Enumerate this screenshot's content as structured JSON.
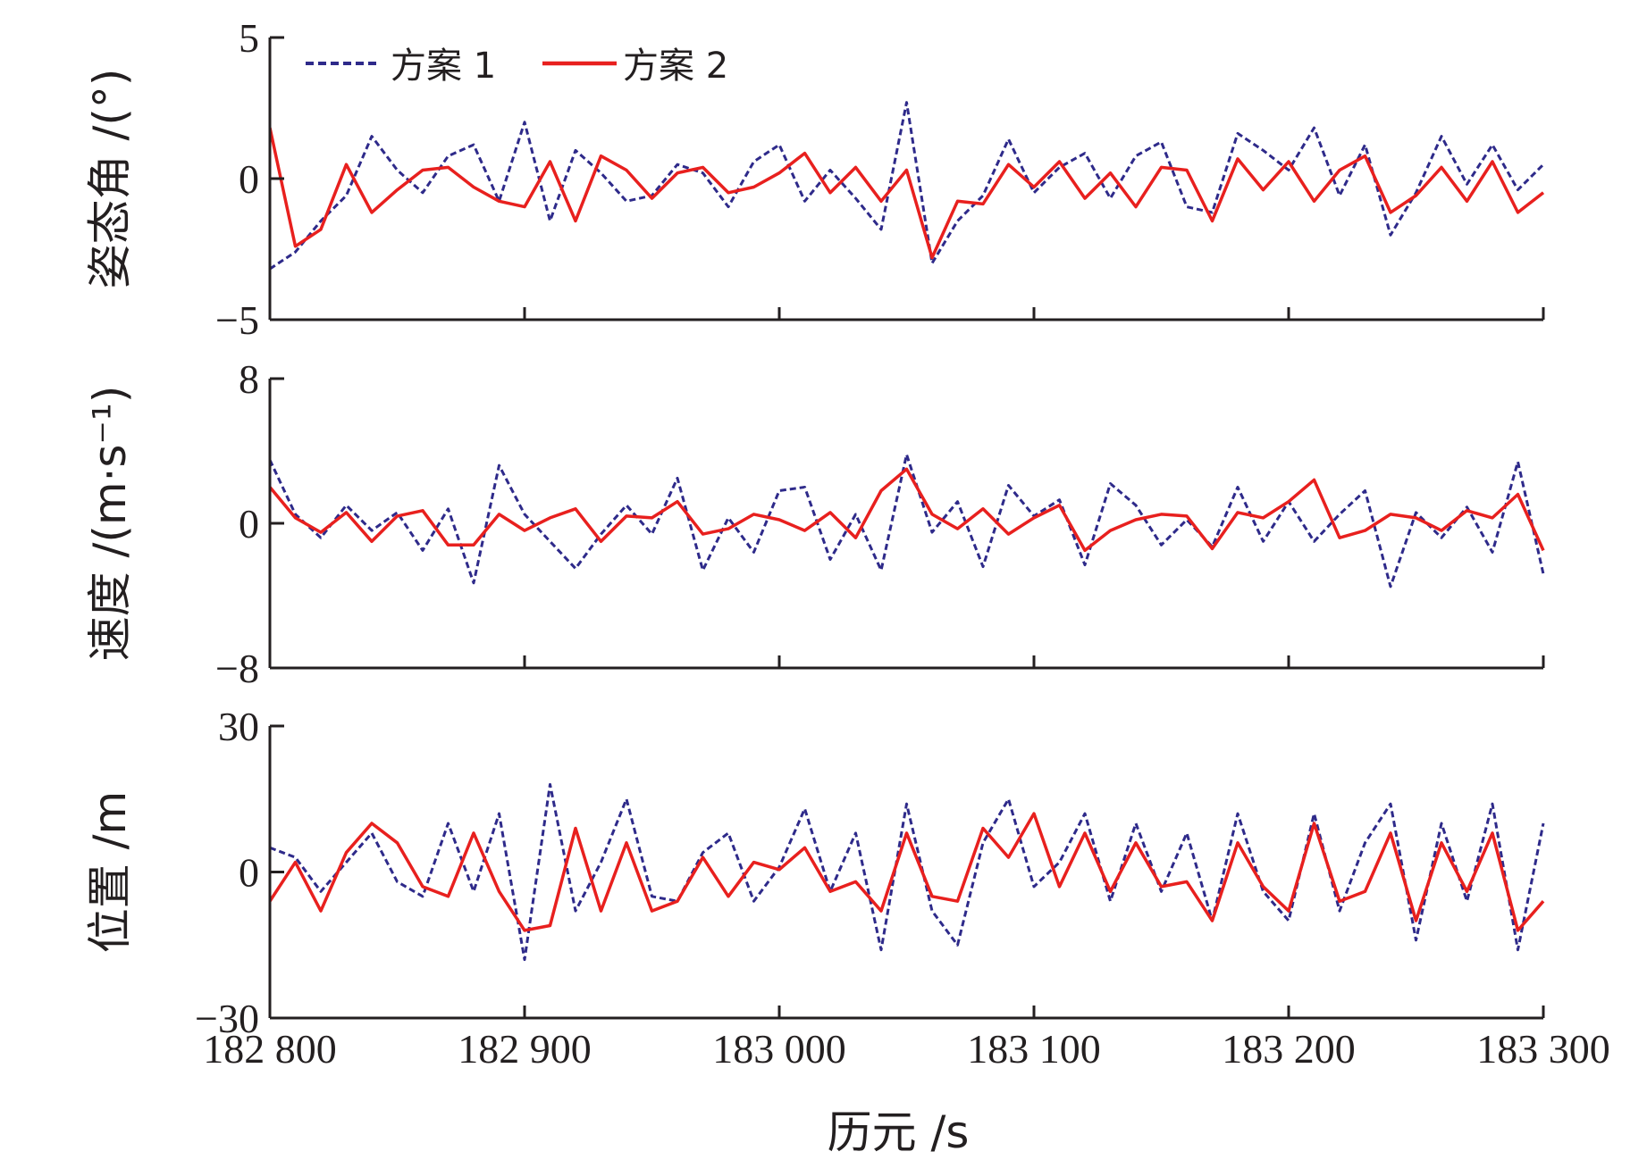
{
  "chart_data": {
    "type": "line",
    "colors": {
      "scheme1": "#2e2a8a",
      "scheme2": "#e8201e",
      "axis": "#231f20"
    },
    "legend": {
      "placement": "top-left",
      "entries": [
        "方案 1",
        "方案 2"
      ]
    },
    "x": {
      "label": "历元 /s",
      "range": [
        182800,
        183300
      ],
      "ticks": [
        182800,
        182900,
        183000,
        183100,
        183200,
        183300
      ],
      "tick_labels": [
        "182 800",
        "182 900",
        "183 000",
        "183 100",
        "183 200",
        "183 300"
      ]
    },
    "x_values": [
      182800,
      182810,
      182820,
      182830,
      182840,
      182850,
      182860,
      182870,
      182880,
      182890,
      182900,
      182910,
      182920,
      182930,
      182940,
      182950,
      182960,
      182970,
      182980,
      182990,
      183000,
      183010,
      183020,
      183030,
      183040,
      183050,
      183060,
      183070,
      183080,
      183090,
      183100,
      183110,
      183120,
      183130,
      183140,
      183150,
      183160,
      183170,
      183180,
      183190,
      183200,
      183210,
      183220,
      183230,
      183240,
      183250,
      183260,
      183270,
      183280,
      183290,
      183300
    ],
    "panels": [
      {
        "ylabel": "姿态角 /(°)",
        "ylim": [
          -5,
          5
        ],
        "yticks": [
          -5,
          0,
          5
        ],
        "ytick_labels": [
          "−5",
          "0",
          "5"
        ],
        "series": [
          {
            "name": "方案 1",
            "values": [
              -3.2,
              -2.6,
              -1.5,
              -0.6,
              1.5,
              0.3,
              -0.5,
              0.8,
              1.2,
              -0.8,
              2.0,
              -1.5,
              1.0,
              0.2,
              -0.8,
              -0.6,
              0.5,
              0.2,
              -1.0,
              0.6,
              1.2,
              -0.8,
              0.3,
              -0.7,
              -1.8,
              2.7,
              -3.0,
              -1.5,
              -0.6,
              1.4,
              -0.5,
              0.4,
              0.9,
              -0.7,
              0.8,
              1.3,
              -1.0,
              -1.2,
              1.6,
              1.0,
              0.3,
              1.8,
              -0.6,
              1.2,
              -2.0,
              -0.5,
              1.5,
              -0.2,
              1.2,
              -0.4,
              0.5
            ]
          },
          {
            "name": "方案 2",
            "values": [
              1.8,
              -2.4,
              -1.8,
              0.5,
              -1.2,
              -0.4,
              0.3,
              0.4,
              -0.3,
              -0.8,
              -1.0,
              0.6,
              -1.5,
              0.8,
              0.3,
              -0.7,
              0.2,
              0.4,
              -0.5,
              -0.3,
              0.2,
              0.9,
              -0.5,
              0.4,
              -0.8,
              0.3,
              -2.8,
              -0.8,
              -0.9,
              0.5,
              -0.3,
              0.6,
              -0.7,
              0.2,
              -1.0,
              0.4,
              0.3,
              -1.5,
              0.7,
              -0.4,
              0.6,
              -0.8,
              0.3,
              0.8,
              -1.2,
              -0.6,
              0.4,
              -0.8,
              0.6,
              -1.2,
              -0.5
            ]
          }
        ]
      },
      {
        "ylabel": "速度 /(m·s⁻¹)",
        "ylim": [
          -8,
          8
        ],
        "yticks": [
          -8,
          0,
          8
        ],
        "ytick_labels": [
          "−8",
          "0",
          "8"
        ],
        "series": [
          {
            "name": "方案 1",
            "values": [
              3.5,
              0.5,
              -0.8,
              1.0,
              -0.4,
              0.6,
              -1.5,
              0.8,
              -3.3,
              3.2,
              0.5,
              -1.0,
              -2.5,
              -0.6,
              1.0,
              -0.6,
              2.5,
              -2.6,
              0.3,
              -1.6,
              1.8,
              2.0,
              -2.0,
              0.5,
              -2.6,
              3.8,
              -0.5,
              1.2,
              -2.4,
              2.1,
              0.4,
              1.3,
              -2.3,
              2.2,
              1.0,
              -1.2,
              0.2,
              -1.3,
              2.0,
              -1.0,
              1.2,
              -1.0,
              0.5,
              1.8,
              -3.5,
              0.6,
              -0.8,
              0.9,
              -1.6,
              3.4,
              -2.8
            ]
          },
          {
            "name": "方案 2",
            "values": [
              2.0,
              0.3,
              -0.5,
              0.6,
              -1.0,
              0.4,
              0.7,
              -1.2,
              -1.2,
              0.5,
              -0.4,
              0.3,
              0.8,
              -1.0,
              0.4,
              0.3,
              1.2,
              -0.6,
              -0.3,
              0.5,
              0.2,
              -0.4,
              0.6,
              -0.8,
              1.8,
              3.0,
              0.5,
              -0.3,
              0.8,
              -0.6,
              0.3,
              1.0,
              -1.5,
              -0.4,
              0.2,
              0.5,
              0.4,
              -1.4,
              0.6,
              0.3,
              1.2,
              2.4,
              -0.8,
              -0.4,
              0.5,
              0.3,
              -0.4,
              0.7,
              0.3,
              1.6,
              -1.5
            ]
          }
        ]
      },
      {
        "ylabel": "位置 /m",
        "ylim": [
          -30,
          30
        ],
        "yticks": [
          -30,
          0,
          30
        ],
        "ytick_labels": [
          "−30",
          "0",
          "30"
        ],
        "series": [
          {
            "name": "方案 1",
            "values": [
              5.0,
              3.0,
              -4.0,
              2.0,
              8.0,
              -2.0,
              -5.0,
              10.0,
              -4.0,
              12.0,
              -18.0,
              18.0,
              -8.0,
              2.0,
              15.0,
              -5.0,
              -6.0,
              4.0,
              8.0,
              -6.0,
              1.0,
              13.0,
              -4.0,
              8.0,
              -16.0,
              14.0,
              -8.0,
              -15.0,
              6.0,
              15.0,
              -3.0,
              2.0,
              12.0,
              -6.0,
              10.0,
              -4.0,
              8.0,
              -10.0,
              12.0,
              -4.0,
              -10.0,
              12.0,
              -8.0,
              6.0,
              14.0,
              -14.0,
              10.0,
              -6.0,
              14.0,
              -16.0,
              10.0
            ]
          },
          {
            "name": "方案 2",
            "values": [
              -6.0,
              2.0,
              -8.0,
              4.0,
              10.0,
              6.0,
              -3.0,
              -5.0,
              8.0,
              -4.0,
              -12.0,
              -11.0,
              9.0,
              -8.0,
              6.0,
              -8.0,
              -6.0,
              3.0,
              -5.0,
              2.0,
              0.5,
              5.0,
              -4.0,
              -2.0,
              -8.0,
              8.0,
              -5.0,
              -6.0,
              9.0,
              3.0,
              12.0,
              -3.0,
              8.0,
              -4.0,
              6.0,
              -3.0,
              -2.0,
              -10.0,
              6.0,
              -3.0,
              -8.0,
              10.0,
              -6.0,
              -4.0,
              8.0,
              -10.0,
              6.0,
              -4.0,
              8.0,
              -12.0,
              -6.0
            ]
          }
        ]
      }
    ]
  }
}
